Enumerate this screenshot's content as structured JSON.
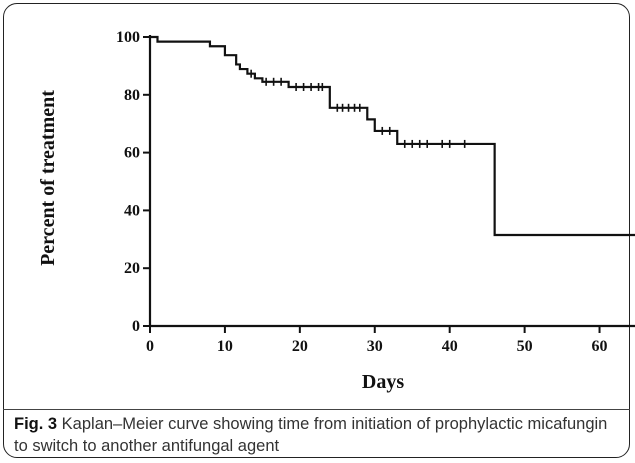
{
  "chart_data": {
    "type": "line",
    "subtype": "kaplan-meier step curve",
    "xlabel": "Days",
    "ylabel": "Percent of treatment",
    "xlim": [
      0,
      65
    ],
    "ylim": [
      0,
      100
    ],
    "x_ticks": [
      0,
      10,
      20,
      30,
      40,
      50,
      60
    ],
    "y_ticks": [
      0,
      20,
      40,
      60,
      80,
      100
    ],
    "grid": false,
    "legend": "none",
    "line_color": "#111111",
    "series": [
      {
        "steps": [
          {
            "x": 0,
            "y": 100
          },
          {
            "x": 1,
            "y": 98.4
          },
          {
            "x": 8,
            "y": 96.8
          },
          {
            "x": 10,
            "y": 93.7
          },
          {
            "x": 11.5,
            "y": 90.5
          },
          {
            "x": 12,
            "y": 88.9
          },
          {
            "x": 13,
            "y": 87.3
          },
          {
            "x": 14,
            "y": 85.7
          },
          {
            "x": 15,
            "y": 84.5
          },
          {
            "x": 18.5,
            "y": 82.7
          },
          {
            "x": 24,
            "y": 75.5
          },
          {
            "x": 29,
            "y": 71.5
          },
          {
            "x": 30,
            "y": 67.5
          },
          {
            "x": 33,
            "y": 63.0
          },
          {
            "x": 46,
            "y": 31.5
          },
          {
            "x": 65,
            "y": 31.5
          }
        ],
        "censored": [
          13.5,
          15.5,
          16.5,
          17.5,
          19.5,
          20.5,
          21.5,
          22.5,
          23,
          25,
          25.7,
          26.5,
          27.3,
          28,
          31,
          32,
          34,
          35,
          36,
          37,
          39,
          40,
          42
        ]
      }
    ]
  },
  "caption": {
    "label": "Fig. 3",
    "text": " Kaplan–Meier curve showing time from initiation of prophylactic micafungin to switch to another antifungal agent"
  }
}
